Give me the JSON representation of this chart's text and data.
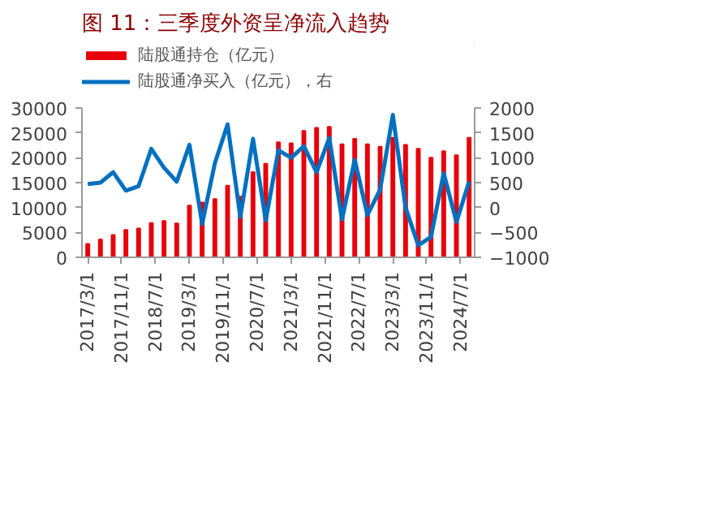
{
  "chart_data": {
    "type": "bar",
    "title": "图 11：三季度外资呈净流入趋势",
    "x": [
      "2017-03-01",
      "2017-06-01",
      "2017-09-01",
      "2017-12-01",
      "2018-03-01",
      "2018-06-01",
      "2018-09-01",
      "2018-12-01",
      "2019-03-01",
      "2019-06-01",
      "2019-09-01",
      "2019-12-01",
      "2020-03-01",
      "2020-06-01",
      "2020-09-01",
      "2020-12-01",
      "2021-03-01",
      "2021-06-01",
      "2021-09-01",
      "2021-12-01",
      "2022-03-01",
      "2022-06-01",
      "2022-09-01",
      "2022-12-01",
      "2023-03-01",
      "2023-06-01",
      "2023-09-01",
      "2023-12-01",
      "2024-03-01",
      "2024-06-01",
      "2024-09-01"
    ],
    "series": [
      {
        "name": "陆股通持仓（亿元）",
        "color": "#e8000b",
        "values": [
          2700,
          3600,
          4500,
          5500,
          5800,
          6900,
          7300,
          6800,
          10400,
          11000,
          11700,
          14400,
          12200,
          17100,
          18800,
          23100,
          22900,
          25400,
          26000,
          26200,
          22700,
          23800,
          22700,
          22200,
          24000,
          22600,
          21800,
          20000,
          21300,
          20500,
          24000
        ]
      },
      {
        "name": "陆股通净买入（亿元），右",
        "type": "line",
        "axis": "y2",
        "color": "#0070c0",
        "values": [
          470,
          500,
          710,
          340,
          430,
          1180,
          800,
          520,
          1260,
          -330,
          890,
          1670,
          -190,
          1380,
          -260,
          1150,
          1000,
          1230,
          710,
          1400,
          -240,
          960,
          -150,
          360,
          1860,
          0,
          -760,
          -590,
          690,
          -290,
          520
        ]
      }
    ],
    "xlim": [
      "2017-01-20",
      "2024-10-10"
    ],
    "xticks": [
      {
        "value": "2017-03-01",
        "label": "2017/3/1"
      },
      {
        "value": "2017-11-01",
        "label": "2017/11/1"
      },
      {
        "value": "2018-07-01",
        "label": "2018/7/1"
      },
      {
        "value": "2019-03-01",
        "label": "2019/3/1"
      },
      {
        "value": "2019-11-01",
        "label": "2019/11/1"
      },
      {
        "value": "2020-07-01",
        "label": "2020/7/1"
      },
      {
        "value": "2021-03-01",
        "label": "2021/3/1"
      },
      {
        "value": "2021-11-01",
        "label": "2021/11/1"
      },
      {
        "value": "2022-07-01",
        "label": "2022/7/1"
      },
      {
        "value": "2023-03-01",
        "label": "2023/3/1"
      },
      {
        "value": "2023-11-01",
        "label": "2023/11/1"
      },
      {
        "value": "2024-07-01",
        "label": "2024/7/1"
      }
    ],
    "ylim": [
      0,
      30000
    ],
    "yticks": [
      0,
      5000,
      10000,
      15000,
      20000,
      25000,
      30000
    ],
    "y2lim": [
      -1000,
      2000
    ],
    "y2ticks": [
      -1000,
      -500,
      0,
      500,
      1000,
      1500,
      2000
    ],
    "grid": false,
    "legend": "top"
  }
}
